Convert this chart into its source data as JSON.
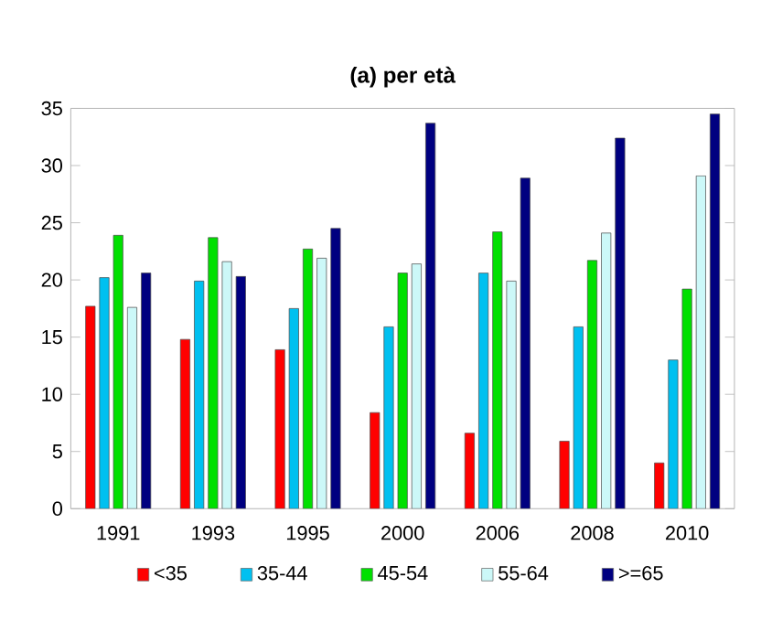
{
  "chart_data": {
    "type": "bar",
    "title": "(a) per età",
    "categories": [
      "1991",
      "1993",
      "1995",
      "2000",
      "2006",
      "2008",
      "2010"
    ],
    "series": [
      {
        "name": "<35",
        "color": "#ff0000",
        "values": [
          17.7,
          14.8,
          13.9,
          8.4,
          6.6,
          5.9,
          4.0
        ]
      },
      {
        "name": "35-44",
        "color": "#00c0f0",
        "values": [
          20.2,
          19.9,
          17.5,
          15.9,
          20.6,
          15.9,
          13.0
        ]
      },
      {
        "name": "45-54",
        "color": "#00e000",
        "values": [
          23.9,
          23.7,
          22.7,
          20.6,
          24.2,
          21.7,
          19.2
        ]
      },
      {
        "name": "55-64",
        "color": "#ccf8f8",
        "values": [
          17.6,
          21.6,
          21.9,
          21.4,
          19.9,
          24.1,
          29.1
        ]
      },
      {
        "name": ">=65",
        "color": "#000080",
        "values": [
          20.6,
          20.3,
          24.5,
          33.7,
          28.9,
          32.4,
          34.5
        ]
      }
    ],
    "ylim": [
      0,
      35
    ],
    "yticks": [
      0,
      5,
      10,
      15,
      20,
      25,
      30,
      35
    ],
    "grid": false,
    "legend": "bottom"
  }
}
